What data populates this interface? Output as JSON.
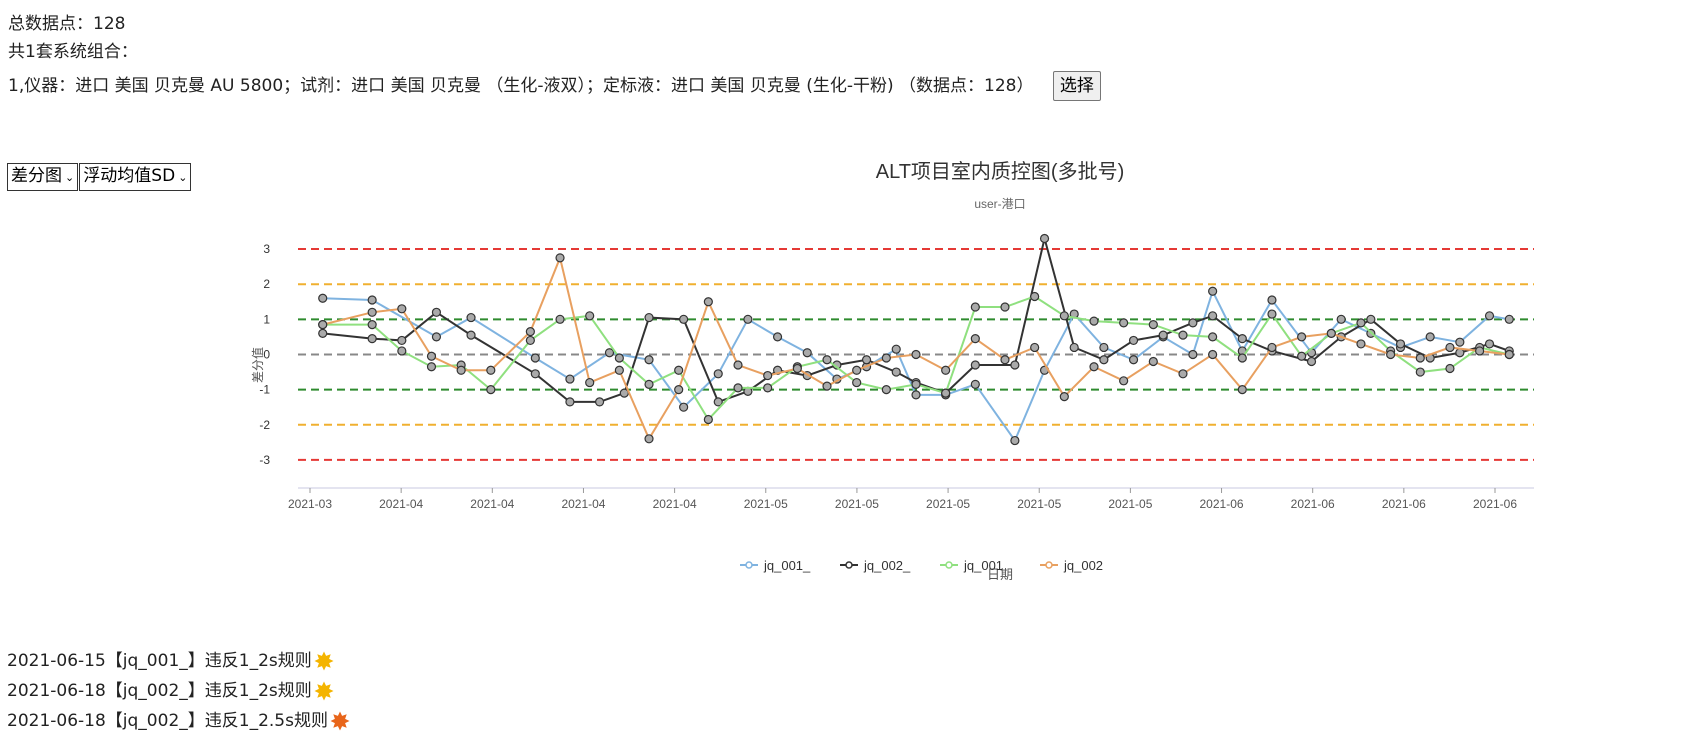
{
  "summary": {
    "total_label": "总数据点：",
    "total_value": "128",
    "groups_text": "共1套系统组合：",
    "system_text": "1,仪器：进口 美国 贝克曼 AU 5800；试剂：进口 美国 贝克曼 （生化-液双）；定标液：进口 美国 贝克曼 (生化-干粉) （数据点：128）",
    "select_button": "选择"
  },
  "controls": {
    "chart_type": "差分图",
    "stat_mode": "浮动均值SD"
  },
  "chart_data": {
    "type": "line",
    "title": "ALT项目室内质控图(多批号)",
    "subtitle": "user-港口",
    "xlabel": "日期",
    "ylabel": "差分值",
    "ylim": [
      -3.8,
      3.4
    ],
    "yticks": [
      -3,
      -2,
      -1,
      0,
      1,
      2,
      3
    ],
    "x_tick_labels": [
      "2021-03",
      "2021-04",
      "2021-04",
      "2021-04",
      "2021-04",
      "2021-05",
      "2021-05",
      "2021-05",
      "2021-05",
      "2021-05",
      "2021-06",
      "2021-06",
      "2021-06",
      "2021-06"
    ],
    "reference_lines": [
      {
        "y": 3,
        "color": "#e53935"
      },
      {
        "y": -3,
        "color": "#e53935"
      },
      {
        "y": 2,
        "color": "#f0b030"
      },
      {
        "y": -2,
        "color": "#f0b030"
      },
      {
        "y": 1,
        "color": "#2e8b2e"
      },
      {
        "y": -1,
        "color": "#2e8b2e"
      },
      {
        "y": 0,
        "color": "#888888"
      }
    ],
    "legend_position": "bottom",
    "series": [
      {
        "name": "jq_001_",
        "color": "#7fb3e0",
        "x": [
          0,
          1,
          2.3,
          3,
          4.3,
          5,
          5.8,
          6.6,
          7.3,
          8,
          8.6,
          9.2,
          9.8,
          10.4,
          11,
          11.6,
          12,
          12.6,
          13.2,
          14,
          14.6,
          15.2,
          15.8,
          16.4,
          17,
          17.6,
          18,
          18.6,
          19.2,
          20,
          20.6,
          21.2,
          21.8,
          22.4,
          23,
          23.6,
          24
        ],
        "y": [
          1.6,
          1.55,
          0.5,
          1.05,
          -0.1,
          -0.7,
          0.05,
          -0.15,
          -1.5,
          -0.55,
          1.0,
          0.5,
          0.05,
          -0.7,
          -0.35,
          0.15,
          -1.15,
          -1.15,
          -0.85,
          -2.45,
          -0.45,
          1.15,
          0.2,
          -0.15,
          0.5,
          0.0,
          1.8,
          0.1,
          1.55,
          0.05,
          1.0,
          0.6,
          0.2,
          0.5,
          0.35,
          1.1,
          1.0
        ]
      },
      {
        "name": "jq_002_",
        "color": "#333333",
        "x": [
          0,
          1,
          1.6,
          2.3,
          3,
          4.3,
          5,
          5.6,
          6.1,
          6.6,
          7.3,
          8,
          8.6,
          9.2,
          9.8,
          10.4,
          11,
          11.6,
          12,
          12.6,
          13.2,
          14,
          14.6,
          15.2,
          15.8,
          16.4,
          17,
          17.6,
          18,
          18.6,
          19.2,
          20,
          20.6,
          21.2,
          21.8,
          22.4,
          23,
          23.6,
          24
        ],
        "y": [
          0.6,
          0.45,
          0.4,
          1.2,
          0.55,
          -0.55,
          -1.35,
          -1.35,
          -1.1,
          1.05,
          1.0,
          -1.35,
          -1.05,
          -0.45,
          -0.6,
          -0.3,
          -0.15,
          -0.5,
          -0.8,
          -1.1,
          -0.3,
          -0.3,
          3.3,
          0.2,
          -0.15,
          0.4,
          0.55,
          0.9,
          1.1,
          0.45,
          0.1,
          -0.2,
          0.5,
          1.0,
          0.3,
          -0.1,
          0.05,
          0.3,
          0.1
        ]
      },
      {
        "name": "jq_001",
        "color": "#8fe07f",
        "x": [
          0,
          1,
          1.6,
          2.2,
          2.8,
          3.4,
          4.2,
          4.8,
          5.4,
          6,
          6.6,
          7.2,
          7.8,
          8.4,
          9,
          9.6,
          10.2,
          10.8,
          11.4,
          12,
          12.6,
          13.2,
          13.8,
          14.4,
          15,
          15.6,
          16.2,
          16.8,
          17.4,
          18,
          18.6,
          19.2,
          19.8,
          20.4,
          21,
          21.6,
          22.2,
          22.8,
          23.4,
          24
        ],
        "y": [
          0.85,
          0.85,
          0.1,
          -0.35,
          -0.3,
          -1.0,
          0.4,
          1.0,
          1.1,
          -0.1,
          -0.85,
          -0.45,
          -1.85,
          -0.95,
          -0.95,
          -0.35,
          -0.15,
          -0.8,
          -1.0,
          -0.85,
          -1.1,
          1.35,
          1.35,
          1.65,
          1.1,
          0.95,
          0.9,
          0.85,
          0.55,
          0.5,
          -0.1,
          1.15,
          -0.05,
          0.6,
          0.9,
          0.1,
          -0.5,
          -0.4,
          0.2,
          0.0
        ]
      },
      {
        "name": "jq_002",
        "color": "#e8a060",
        "x": [
          0,
          1,
          1.6,
          2.2,
          2.8,
          3.4,
          4.2,
          4.8,
          5.4,
          6,
          6.6,
          7.2,
          7.8,
          8.4,
          9,
          9.6,
          10.2,
          10.8,
          11.4,
          12,
          12.6,
          13.2,
          13.8,
          14.4,
          15,
          15.6,
          16.2,
          16.8,
          17.4,
          18,
          18.6,
          19.2,
          19.8,
          20.4,
          21,
          21.6,
          22.2,
          22.8,
          23.4,
          24
        ],
        "y": [
          0.85,
          1.2,
          1.3,
          -0.05,
          -0.45,
          -0.45,
          0.65,
          2.75,
          -0.8,
          -0.45,
          -2.4,
          -1.0,
          1.5,
          -0.3,
          -0.6,
          -0.4,
          -0.9,
          -0.45,
          -0.1,
          0.0,
          -0.45,
          0.45,
          -0.15,
          0.2,
          -1.2,
          -0.35,
          -0.75,
          -0.2,
          -0.55,
          0.0,
          -1.0,
          0.2,
          0.5,
          0.6,
          0.3,
          0.0,
          -0.1,
          0.2,
          0.1,
          0.0
        ]
      }
    ]
  },
  "violations": [
    {
      "date": "2021-06-15",
      "text": "【jq_001_】违反1_2s规则",
      "icon": "sun-warning-icon",
      "color": "#f4b400"
    },
    {
      "date": "2021-06-18",
      "text": "【jq_002_】违反1_2s规则",
      "icon": "sun-warning-icon",
      "color": "#f4b400"
    },
    {
      "date": "2021-06-18",
      "text": "【jq_002_】违反1_2.5s规则",
      "icon": "burst-alert-icon",
      "color": "#e8651a"
    }
  ]
}
